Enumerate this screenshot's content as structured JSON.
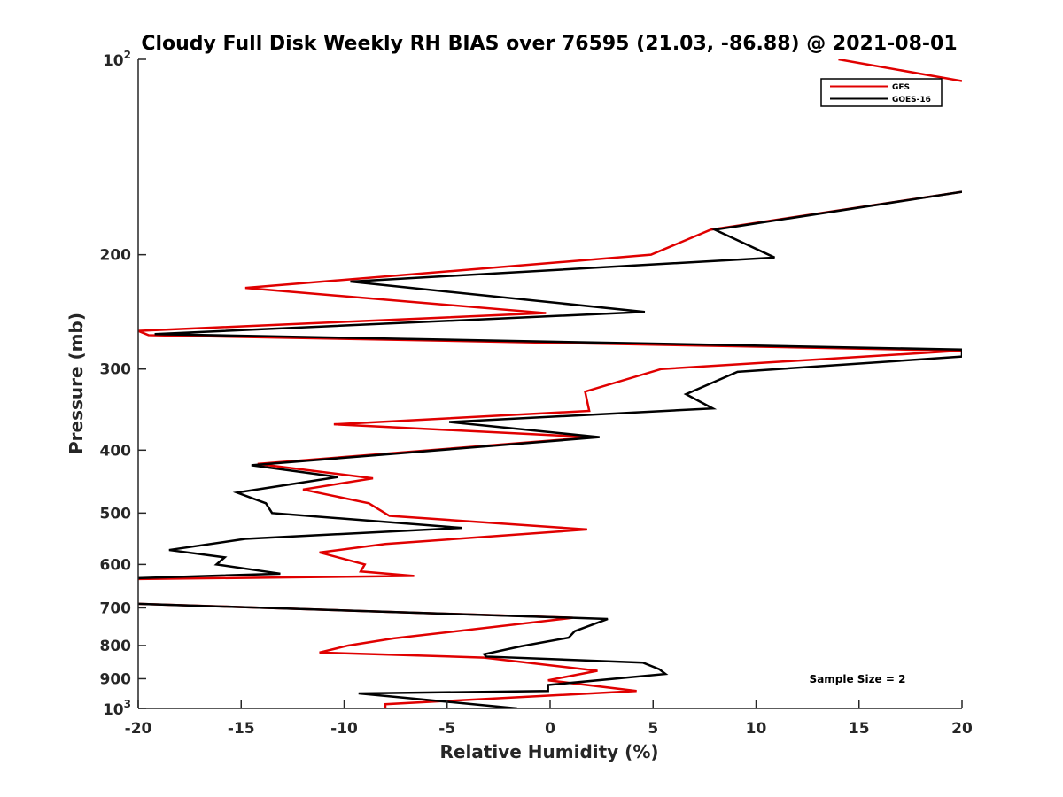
{
  "chart_data": {
    "type": "line",
    "title": "Cloudy Full Disk Weekly RH BIAS over 76595 (21.03, -86.88) @ 2021-08-01",
    "xlabel": "Relative Humidity (%)",
    "ylabel": "Pressure (mb)",
    "xlim": [
      -20,
      20
    ],
    "ylim": [
      100,
      1000
    ],
    "yscale": "log",
    "y_reversed": true,
    "x_ticks": [
      "-20",
      "-15",
      "-10",
      "-5",
      "0",
      "5",
      "10",
      "15",
      "20"
    ],
    "y_ticks": [
      {
        "value": 100,
        "base": "10",
        "exp": "2"
      },
      {
        "value": 200,
        "label": "200"
      },
      {
        "value": 300,
        "label": "300"
      },
      {
        "value": 400,
        "label": "400"
      },
      {
        "value": 500,
        "label": "500"
      },
      {
        "value": 600,
        "label": "600"
      },
      {
        "value": 700,
        "label": "700"
      },
      {
        "value": 800,
        "label": "800"
      },
      {
        "value": 900,
        "label": "900"
      },
      {
        "value": 1000,
        "base": "10",
        "exp": "3"
      }
    ],
    "legend_position": "top-right",
    "annotation": "Sample Size = 2",
    "series": [
      {
        "name": "GFS",
        "color": "#e00000",
        "points": [
          [
            14,
            100
          ],
          [
            20,
            108
          ],
          [
            null,
            null
          ],
          [
            20,
            160
          ],
          [
            7.8,
            183
          ],
          [
            4.9,
            200
          ],
          [
            -14.8,
            225
          ],
          [
            -0.2,
            246
          ],
          [
            -20,
            262
          ],
          [
            -19.5,
            266
          ],
          [
            20,
            281
          ],
          [
            5.4,
            300
          ],
          [
            1.7,
            325
          ],
          [
            1.9,
            348
          ],
          [
            -10.5,
            365
          ],
          [
            2.1,
            382
          ],
          [
            -14.2,
            420
          ],
          [
            -8.6,
            442
          ],
          [
            -12,
            460
          ],
          [
            -8.8,
            483
          ],
          [
            -7.8,
            505
          ],
          [
            1.8,
            530
          ],
          [
            -8,
            558
          ],
          [
            -11.2,
            575
          ],
          [
            -9,
            600
          ],
          [
            -9.2,
            615
          ],
          [
            -6.6,
            625
          ],
          [
            -20,
            632
          ],
          [
            null,
            null
          ],
          [
            -20,
            690
          ],
          [
            1.1,
            725
          ],
          [
            -7.6,
            780
          ],
          [
            -9.8,
            800
          ],
          [
            -11.2,
            820
          ],
          [
            -3.2,
            835
          ],
          [
            2.3,
            875
          ],
          [
            -0.1,
            905
          ],
          [
            4.2,
            940
          ],
          [
            -8,
            985
          ],
          [
            -8,
            1000
          ]
        ]
      },
      {
        "name": "GOES-16",
        "color": "#000000",
        "points": [
          [
            20,
            160
          ],
          [
            8,
            183
          ],
          [
            10.9,
            202
          ],
          [
            -9.7,
            220
          ],
          [
            4.6,
            245
          ],
          [
            -19.2,
            265
          ],
          [
            20,
            280
          ],
          [
            20,
            287
          ],
          [
            9.1,
            303
          ],
          [
            6.6,
            328
          ],
          [
            7.9,
            345
          ],
          [
            -4.9,
            362
          ],
          [
            2.4,
            382
          ],
          [
            -14.5,
            422
          ],
          [
            -10.3,
            440
          ],
          [
            -15.2,
            465
          ],
          [
            -13.8,
            483
          ],
          [
            -13.5,
            500
          ],
          [
            -4.3,
            527
          ],
          [
            -14.8,
            548
          ],
          [
            -18.5,
            570
          ],
          [
            -15.8,
            585
          ],
          [
            -16.2,
            600
          ],
          [
            -13.1,
            620
          ],
          [
            -20,
            630
          ],
          [
            null,
            null
          ],
          [
            -20,
            690
          ],
          [
            2.8,
            728
          ],
          [
            1.2,
            760
          ],
          [
            0.9,
            778
          ],
          [
            -1.4,
            802
          ],
          [
            -3.2,
            825
          ],
          [
            -3.1,
            832
          ],
          [
            4.5,
            850
          ],
          [
            5.3,
            870
          ],
          [
            5.6,
            885
          ],
          [
            -0.1,
            920
          ],
          [
            -0.1,
            940
          ],
          [
            -9.3,
            948
          ],
          [
            -1.6,
            1000
          ]
        ]
      }
    ]
  }
}
